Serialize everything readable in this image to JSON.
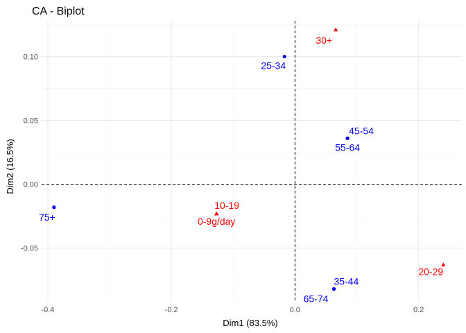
{
  "chart_data": {
    "type": "scatter",
    "title": "CA - Biplot",
    "xlabel": "Dim1 (83.5%)",
    "ylabel": "Dim2 (16.5%)",
    "xlim": [
      -0.41,
      0.27
    ],
    "ylim": [
      -0.092,
      0.128
    ],
    "x_ticks": [
      -0.4,
      -0.2,
      0.0,
      0.2
    ],
    "y_ticks": [
      -0.05,
      0.0,
      0.05,
      0.1
    ],
    "x_tick_labels": [
      "-0.4",
      "-0.2",
      "0.0",
      "0.2"
    ],
    "y_tick_labels": [
      "-0.05",
      "0.00",
      "0.05",
      "0.10"
    ],
    "grid": true,
    "reference_lines": {
      "x": 0,
      "y": 0,
      "style": "dashed"
    },
    "colors": {
      "rows": "#0000ff",
      "cols": "#ff0000"
    },
    "series": [
      {
        "marker": "circle",
        "color": "#0000ff",
        "points": [
          {
            "label": "25-34",
            "x": -0.017,
            "y": 0.1
          },
          {
            "label": "45-54",
            "x": 0.085,
            "y": 0.036
          },
          {
            "label": "55-64",
            "x": 0.085,
            "y": 0.036
          },
          {
            "label": "75+",
            "x": -0.39,
            "y": -0.018
          },
          {
            "label": "35-44",
            "x": 0.063,
            "y": -0.082
          },
          {
            "label": "65-74",
            "x": 0.063,
            "y": -0.082
          }
        ]
      },
      {
        "marker": "triangle",
        "color": "#ff0000",
        "points": [
          {
            "label": "30+",
            "x": 0.066,
            "y": 0.121
          },
          {
            "label": "10-19",
            "x": -0.127,
            "y": -0.023
          },
          {
            "label": "0-9g/day",
            "x": -0.127,
            "y": -0.023
          },
          {
            "label": "20-29",
            "x": 0.24,
            "y": -0.063
          }
        ]
      }
    ]
  }
}
